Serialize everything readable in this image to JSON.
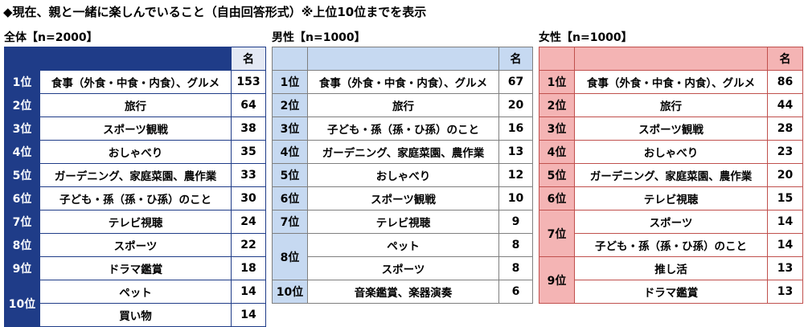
{
  "title": "◆現在、親と一緒に楽しんでいること（自由回答形式）※上位10位までを表示",
  "tables": [
    {
      "label": "全体【n=2000】",
      "header": "名",
      "groups": [
        {
          "rank": "1位",
          "items": [
            {
              "name": "食事（外食・中食・内食）、グルメ",
              "count": 153
            }
          ]
        },
        {
          "rank": "2位",
          "items": [
            {
              "name": "旅行",
              "count": 64
            }
          ]
        },
        {
          "rank": "3位",
          "items": [
            {
              "name": "スポーツ観戦",
              "count": 38
            }
          ]
        },
        {
          "rank": "4位",
          "items": [
            {
              "name": "おしゃべり",
              "count": 35
            }
          ]
        },
        {
          "rank": "5位",
          "items": [
            {
              "name": "ガーデニング、家庭菜園、農作業",
              "count": 33
            }
          ]
        },
        {
          "rank": "6位",
          "items": [
            {
              "name": "子ども・孫（孫・ひ孫）のこと",
              "count": 30
            }
          ]
        },
        {
          "rank": "7位",
          "items": [
            {
              "name": "テレビ視聴",
              "count": 24
            }
          ]
        },
        {
          "rank": "8位",
          "items": [
            {
              "name": "スポーツ",
              "count": 22
            }
          ]
        },
        {
          "rank": "9位",
          "items": [
            {
              "name": "ドラマ鑑賞",
              "count": 18
            }
          ]
        },
        {
          "rank": "10位",
          "items": [
            {
              "name": "ペット",
              "count": 14
            },
            {
              "name": "買い物",
              "count": 14
            }
          ]
        }
      ]
    },
    {
      "label": "男性【n=1000】",
      "header": "名",
      "groups": [
        {
          "rank": "1位",
          "items": [
            {
              "name": "食事（外食・中食・内食）、グルメ",
              "count": 67
            }
          ]
        },
        {
          "rank": "2位",
          "items": [
            {
              "name": "旅行",
              "count": 20
            }
          ]
        },
        {
          "rank": "3位",
          "items": [
            {
              "name": "子ども・孫（孫・ひ孫）のこと",
              "count": 16
            }
          ]
        },
        {
          "rank": "4位",
          "items": [
            {
              "name": "ガーデニング、家庭菜園、農作業",
              "count": 13
            }
          ]
        },
        {
          "rank": "5位",
          "items": [
            {
              "name": "おしゃべり",
              "count": 12
            }
          ]
        },
        {
          "rank": "6位",
          "items": [
            {
              "name": "スポーツ観戦",
              "count": 10
            }
          ]
        },
        {
          "rank": "7位",
          "items": [
            {
              "name": "テレビ視聴",
              "count": 9
            }
          ]
        },
        {
          "rank": "8位",
          "items": [
            {
              "name": "ペット",
              "count": 8
            },
            {
              "name": "スポーツ",
              "count": 8
            }
          ]
        },
        {
          "rank": "10位",
          "items": [
            {
              "name": "音楽鑑賞、楽器演奏",
              "count": 6
            }
          ]
        }
      ]
    },
    {
      "label": "女性【n=1000】",
      "header": "名",
      "groups": [
        {
          "rank": "1位",
          "items": [
            {
              "name": "食事（外食・中食・内食）、グルメ",
              "count": 86
            }
          ]
        },
        {
          "rank": "2位",
          "items": [
            {
              "name": "旅行",
              "count": 44
            }
          ]
        },
        {
          "rank": "3位",
          "items": [
            {
              "name": "スポーツ観戦",
              "count": 28
            }
          ]
        },
        {
          "rank": "4位",
          "items": [
            {
              "name": "おしゃべり",
              "count": 23
            }
          ]
        },
        {
          "rank": "5位",
          "items": [
            {
              "name": "ガーデニング、家庭菜園、農作業",
              "count": 20
            }
          ]
        },
        {
          "rank": "6位",
          "items": [
            {
              "name": "テレビ視聴",
              "count": 15
            }
          ]
        },
        {
          "rank": "7位",
          "items": [
            {
              "name": "スポーツ",
              "count": 14
            },
            {
              "name": "子ども・孫（孫・ひ孫）のこと",
              "count": 14
            }
          ]
        },
        {
          "rank": "9位",
          "items": [
            {
              "name": "推し活",
              "count": 13
            },
            {
              "name": "ドラマ鑑賞",
              "count": 13
            }
          ]
        }
      ]
    }
  ]
}
